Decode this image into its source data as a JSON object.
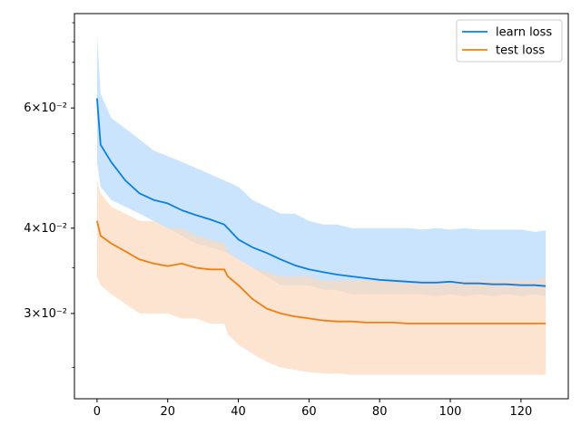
{
  "chart_data": {
    "type": "line",
    "title": "",
    "xlabel": "",
    "ylabel": "",
    "y_scale": "log",
    "xlim": [
      -6.4,
      133.4
    ],
    "ylim": [
      0.0225,
      0.0825
    ],
    "x_ticks": [
      0,
      20,
      40,
      60,
      80,
      100,
      120
    ],
    "x_tick_labels": [
      "0",
      "20",
      "40",
      "60",
      "80",
      "100",
      "120"
    ],
    "y_ticks": [
      0.03,
      0.04,
      0.06
    ],
    "y_tick_labels": [
      "3×10⁻²",
      "4×10⁻²",
      "6×10⁻²"
    ],
    "legend_position": "top-right",
    "grid": false,
    "series": [
      {
        "name": "learn loss",
        "color": "#0a7fe6",
        "band_color": "#b7dbfb",
        "x": [
          0,
          1,
          4,
          8,
          12,
          16,
          20,
          24,
          28,
          32,
          36,
          40,
          44,
          48,
          52,
          56,
          60,
          64,
          68,
          72,
          76,
          80,
          84,
          88,
          92,
          96,
          100,
          104,
          108,
          112,
          116,
          120,
          124,
          127
        ],
        "mean": [
          0.062,
          0.053,
          0.05,
          0.047,
          0.045,
          0.044,
          0.0435,
          0.0425,
          0.0418,
          0.0412,
          0.0405,
          0.0385,
          0.0375,
          0.0368,
          0.036,
          0.0353,
          0.0348,
          0.0345,
          0.0342,
          0.034,
          0.0338,
          0.0336,
          0.0335,
          0.0334,
          0.0333,
          0.0333,
          0.0334,
          0.0332,
          0.0332,
          0.0331,
          0.0331,
          0.033,
          0.033,
          0.0329
        ],
        "upper": [
          0.077,
          0.063,
          0.058,
          0.056,
          0.054,
          0.052,
          0.051,
          0.05,
          0.049,
          0.048,
          0.047,
          0.046,
          0.044,
          0.043,
          0.042,
          0.042,
          0.041,
          0.0405,
          0.0405,
          0.04,
          0.04,
          0.04,
          0.04,
          0.04,
          0.0398,
          0.04,
          0.0398,
          0.04,
          0.0398,
          0.0398,
          0.0398,
          0.0398,
          0.0395,
          0.0397
        ],
        "lower": [
          0.05,
          0.046,
          0.044,
          0.043,
          0.042,
          0.041,
          0.04,
          0.039,
          0.038,
          0.0375,
          0.037,
          0.036,
          0.035,
          0.034,
          0.033,
          0.033,
          0.033,
          0.0325,
          0.0325,
          0.032,
          0.032,
          0.032,
          0.032,
          0.032,
          0.032,
          0.0318,
          0.032,
          0.0318,
          0.032,
          0.0318,
          0.032,
          0.0318,
          0.032,
          0.0318
        ]
      },
      {
        "name": "test loss",
        "color": "#f07f12",
        "band_color": "#fcd9bd",
        "x": [
          0,
          1,
          4,
          8,
          12,
          16,
          20,
          24,
          28,
          32,
          36,
          37,
          40,
          44,
          48,
          52,
          56,
          60,
          64,
          68,
          72,
          76,
          80,
          84,
          88,
          92,
          96,
          100,
          104,
          108,
          112,
          116,
          120,
          124,
          127
        ],
        "mean": [
          0.041,
          0.039,
          0.038,
          0.037,
          0.036,
          0.0355,
          0.0352,
          0.0355,
          0.035,
          0.0348,
          0.0348,
          0.034,
          0.033,
          0.0315,
          0.0305,
          0.03,
          0.0297,
          0.0295,
          0.0293,
          0.0292,
          0.0292,
          0.0291,
          0.0291,
          0.0291,
          0.029,
          0.029,
          0.029,
          0.029,
          0.029,
          0.029,
          0.029,
          0.029,
          0.029,
          0.029,
          0.029
        ],
        "upper": [
          0.047,
          0.045,
          0.043,
          0.042,
          0.041,
          0.041,
          0.04,
          0.04,
          0.039,
          0.0385,
          0.038,
          0.037,
          0.036,
          0.035,
          0.0345,
          0.034,
          0.034,
          0.034,
          0.0335,
          0.0335,
          0.0335,
          0.0335,
          0.0335,
          0.0335,
          0.0335,
          0.0335,
          0.0335,
          0.0335,
          0.0335,
          0.0335,
          0.0335,
          0.0335,
          0.0335,
          0.0335,
          0.034
        ],
        "lower": [
          0.034,
          0.033,
          0.032,
          0.031,
          0.03,
          0.03,
          0.03,
          0.0295,
          0.0295,
          0.029,
          0.029,
          0.028,
          0.027,
          0.0262,
          0.0255,
          0.025,
          0.0248,
          0.0246,
          0.0245,
          0.0245,
          0.0244,
          0.0244,
          0.0244,
          0.0244,
          0.0244,
          0.0244,
          0.0244,
          0.0244,
          0.0244,
          0.0244,
          0.0244,
          0.0244,
          0.0244,
          0.0244,
          0.0244
        ]
      }
    ]
  }
}
